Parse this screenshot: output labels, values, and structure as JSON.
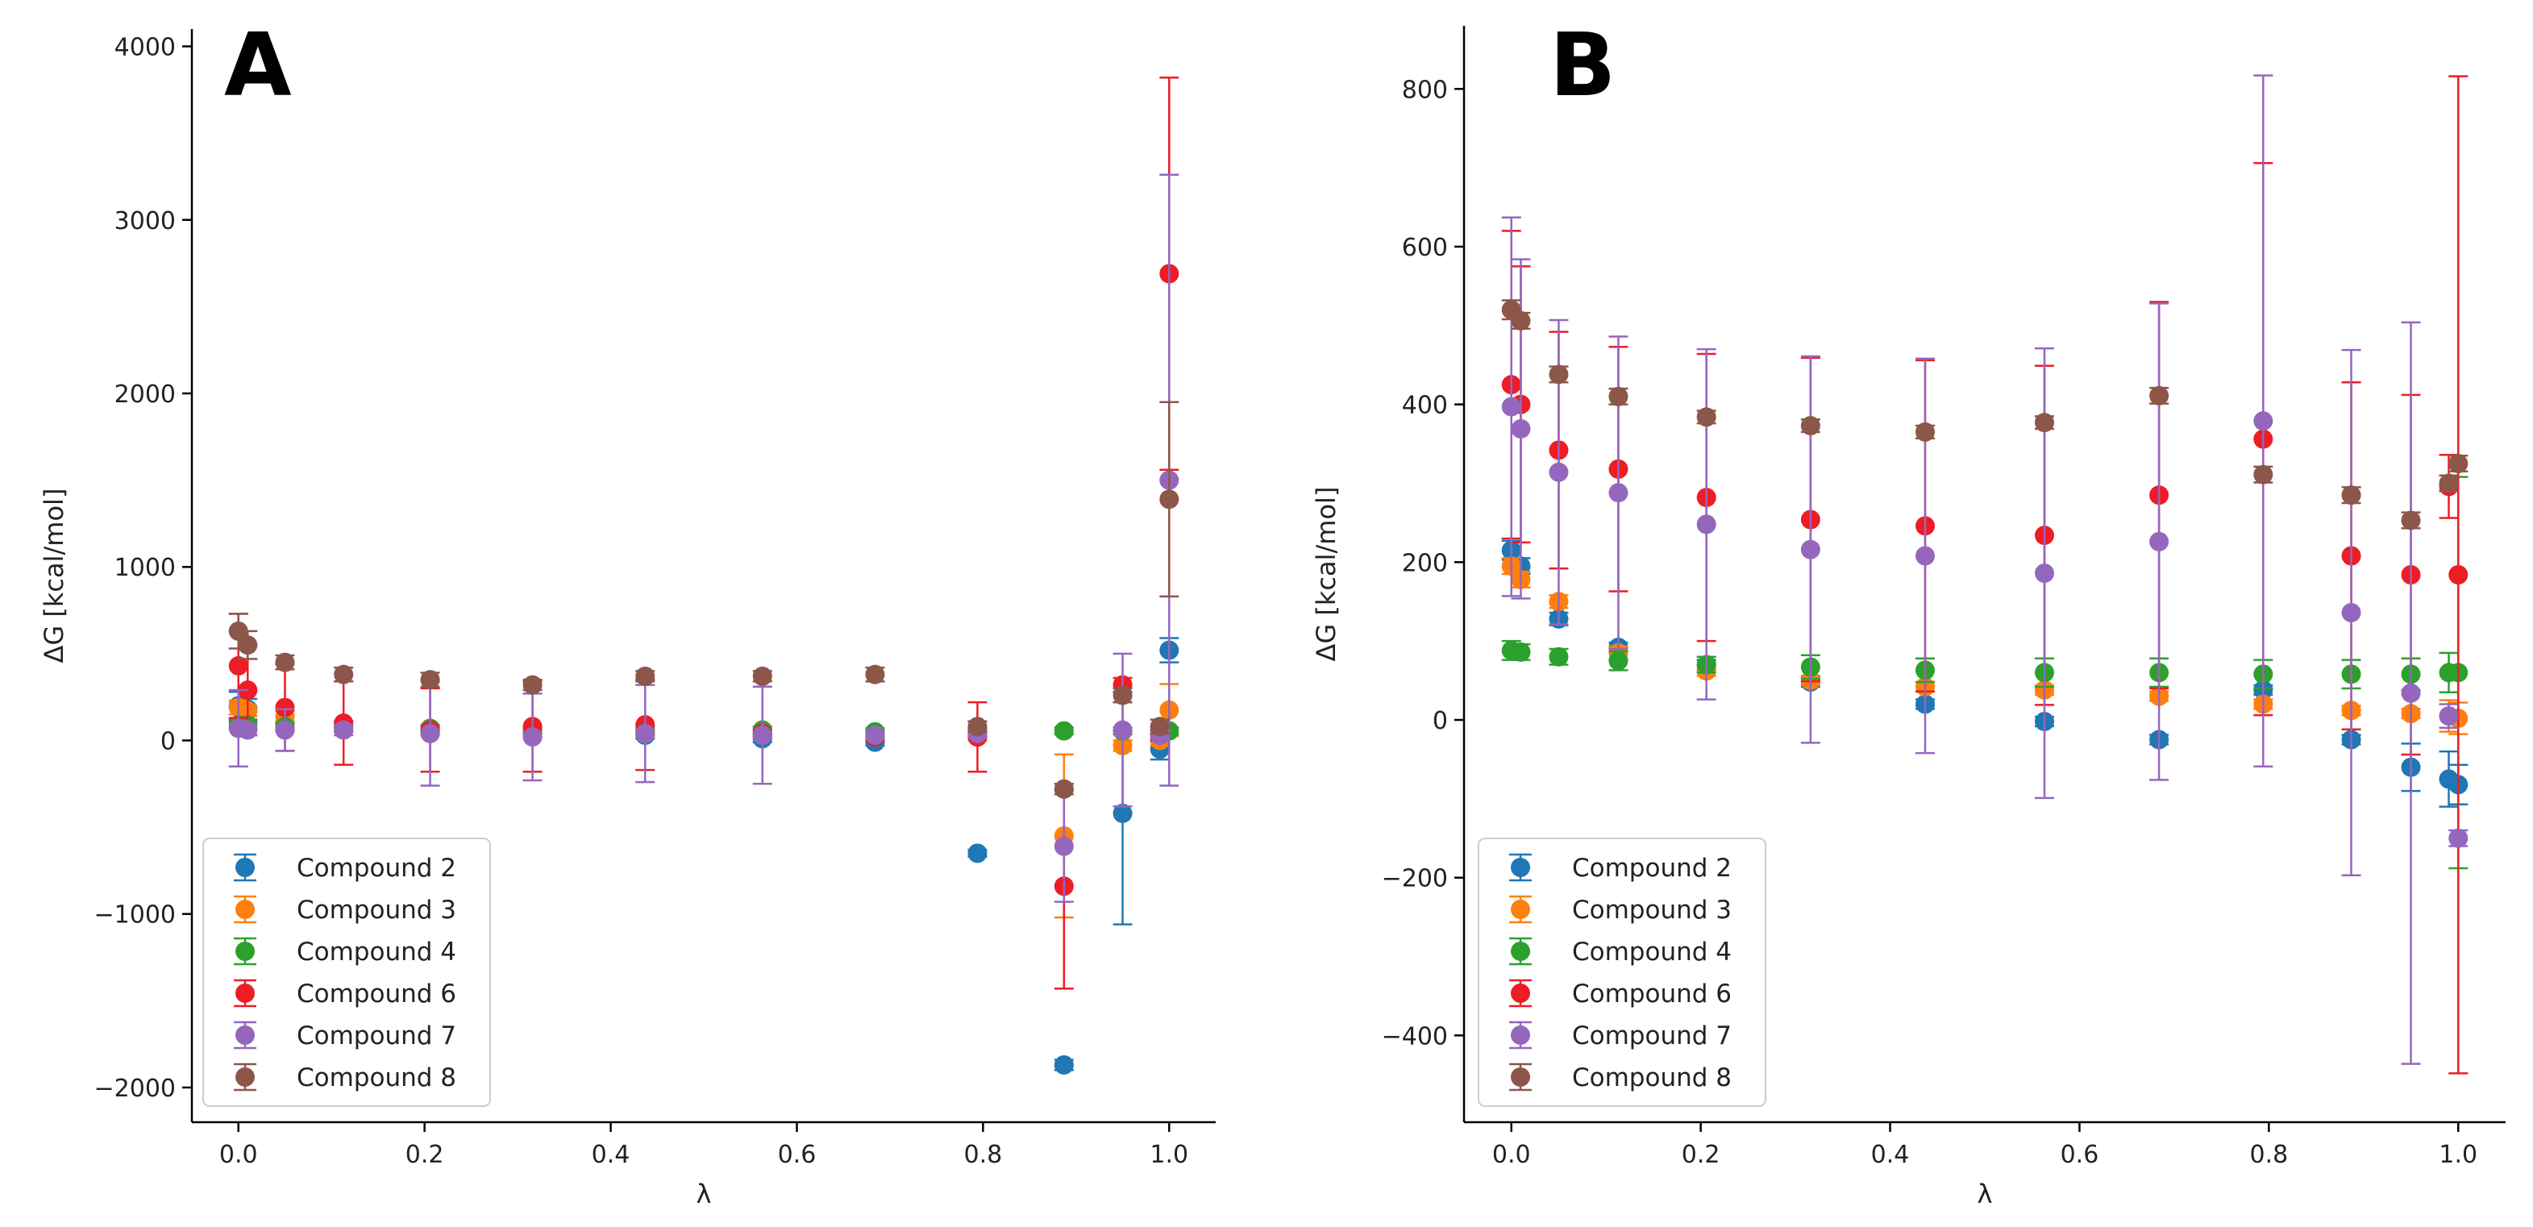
{
  "colors": {
    "Compound 2": "#1f77b4",
    "Compound 3": "#ff7f0e",
    "Compound 4": "#2ca02c",
    "Compound 6": "#ee1c24",
    "Compound 7": "#9467bd",
    "Compound 8": "#8c564b"
  },
  "chart_data": [
    {
      "type": "scatter",
      "panel_label": "A",
      "xlabel": "λ",
      "ylabel": "ΔG [kcal/mol]",
      "xlim": [
        -0.05,
        1.05
      ],
      "ylim": [
        -2200,
        4100
      ],
      "xticks": [
        0.0,
        0.2,
        0.4,
        0.6,
        0.8,
        1.0
      ],
      "xtick_labels": [
        "0.0",
        "0.2",
        "0.4",
        "0.6",
        "0.8",
        "1.0"
      ],
      "yticks": [
        -2000,
        -1000,
        0,
        1000,
        2000,
        3000,
        4000
      ],
      "ytick_labels": [
        "−2000",
        "−1000",
        "0",
        "1000",
        "2000",
        "3000",
        "4000"
      ],
      "legend_position": "lower-left",
      "series": [
        {
          "name": "Compound 2",
          "points": [
            {
              "x": 0.0,
              "y": 200,
              "err": 80
            },
            {
              "x": 0.01,
              "y": 180,
              "err": 60
            },
            {
              "x": 0.05,
              "y": 100,
              "err": 40
            },
            {
              "x": 0.113,
              "y": 80,
              "err": 30
            },
            {
              "x": 0.206,
              "y": 60,
              "err": 20
            },
            {
              "x": 0.316,
              "y": 40,
              "err": 20
            },
            {
              "x": 0.437,
              "y": 30,
              "err": 20
            },
            {
              "x": 0.563,
              "y": 10,
              "err": 20
            },
            {
              "x": 0.684,
              "y": -10,
              "err": 20
            },
            {
              "x": 0.794,
              "y": -650,
              "err": 20
            },
            {
              "x": 0.887,
              "y": -1870,
              "err": 30
            },
            {
              "x": 0.95,
              "y": -420,
              "err": 640
            },
            {
              "x": 0.99,
              "y": -50,
              "err": 60
            },
            {
              "x": 1.0,
              "y": 520,
              "err": 70
            }
          ]
        },
        {
          "name": "Compound 3",
          "points": [
            {
              "x": 0.0,
              "y": 190,
              "err": 40
            },
            {
              "x": 0.01,
              "y": 170,
              "err": 30
            },
            {
              "x": 0.05,
              "y": 140,
              "err": 30
            },
            {
              "x": 0.113,
              "y": 70,
              "err": 20
            },
            {
              "x": 0.206,
              "y": 50,
              "err": 20
            },
            {
              "x": 0.316,
              "y": 40,
              "err": 20
            },
            {
              "x": 0.437,
              "y": 40,
              "err": 20
            },
            {
              "x": 0.563,
              "y": 40,
              "err": 20
            },
            {
              "x": 0.684,
              "y": 40,
              "err": 20
            },
            {
              "x": 0.794,
              "y": 20,
              "err": 20
            },
            {
              "x": 0.887,
              "y": -550,
              "err": 470
            },
            {
              "x": 0.95,
              "y": -30,
              "err": 30
            },
            {
              "x": 0.99,
              "y": 0,
              "err": 30
            },
            {
              "x": 1.0,
              "y": 175,
              "err": 150
            }
          ]
        },
        {
          "name": "Compound 4",
          "points": [
            {
              "x": 0.0,
              "y": 90,
              "err": 20
            },
            {
              "x": 0.01,
              "y": 90,
              "err": 20
            },
            {
              "x": 0.05,
              "y": 80,
              "err": 20
            },
            {
              "x": 0.113,
              "y": 70,
              "err": 20
            },
            {
              "x": 0.206,
              "y": 70,
              "err": 20
            },
            {
              "x": 0.316,
              "y": 60,
              "err": 20
            },
            {
              "x": 0.437,
              "y": 60,
              "err": 20
            },
            {
              "x": 0.563,
              "y": 60,
              "err": 20
            },
            {
              "x": 0.684,
              "y": 50,
              "err": 20
            },
            {
              "x": 0.794,
              "y": 50,
              "err": 20
            },
            {
              "x": 0.887,
              "y": 55,
              "err": 20
            },
            {
              "x": 0.95,
              "y": 55,
              "err": 20
            },
            {
              "x": 0.99,
              "y": 55,
              "err": 20
            },
            {
              "x": 1.0,
              "y": 55,
              "err": 20
            }
          ]
        },
        {
          "name": "Compound 6",
          "points": [
            {
              "x": 0.0,
              "y": 430,
              "err": 300
            },
            {
              "x": 0.01,
              "y": 290,
              "err": 260
            },
            {
              "x": 0.05,
              "y": 190,
              "err": 250
            },
            {
              "x": 0.113,
              "y": 100,
              "err": 240
            },
            {
              "x": 0.206,
              "y": 60,
              "err": 240
            },
            {
              "x": 0.316,
              "y": 80,
              "err": 260
            },
            {
              "x": 0.437,
              "y": 90,
              "err": 260
            },
            {
              "x": 0.563,
              "y": 40,
              "err": 20
            },
            {
              "x": 0.684,
              "y": 20,
              "err": 20
            },
            {
              "x": 0.794,
              "y": 20,
              "err": 200
            },
            {
              "x": 0.887,
              "y": -840,
              "err": 590
            },
            {
              "x": 0.95,
              "y": 320,
              "err": 40
            },
            {
              "x": 0.99,
              "y": 30,
              "err": 30
            },
            {
              "x": 1.0,
              "y": 2690,
              "err": 1130
            }
          ]
        },
        {
          "name": "Compound 7",
          "points": [
            {
              "x": 0.0,
              "y": 70,
              "err": 220
            },
            {
              "x": 0.01,
              "y": 60,
              "err": 30
            },
            {
              "x": 0.05,
              "y": 60,
              "err": 120
            },
            {
              "x": 0.113,
              "y": 60,
              "err": 30
            },
            {
              "x": 0.206,
              "y": 40,
              "err": 300
            },
            {
              "x": 0.316,
              "y": 20,
              "err": 250
            },
            {
              "x": 0.437,
              "y": 40,
              "err": 280
            },
            {
              "x": 0.563,
              "y": 30,
              "err": 280
            },
            {
              "x": 0.684,
              "y": 30,
              "err": 20
            },
            {
              "x": 0.794,
              "y": 40,
              "err": 20
            },
            {
              "x": 0.887,
              "y": -610,
              "err": 320
            },
            {
              "x": 0.95,
              "y": 60,
              "err": 440
            },
            {
              "x": 0.99,
              "y": 30,
              "err": 20
            },
            {
              "x": 1.0,
              "y": 1500,
              "err": 1760
            }
          ]
        },
        {
          "name": "Compound 8",
          "points": [
            {
              "x": 0.0,
              "y": 630,
              "err": 100
            },
            {
              "x": 0.01,
              "y": 550,
              "err": 80
            },
            {
              "x": 0.05,
              "y": 450,
              "err": 40
            },
            {
              "x": 0.113,
              "y": 380,
              "err": 40
            },
            {
              "x": 0.206,
              "y": 350,
              "err": 40
            },
            {
              "x": 0.316,
              "y": 320,
              "err": 30
            },
            {
              "x": 0.437,
              "y": 370,
              "err": 30
            },
            {
              "x": 0.563,
              "y": 370,
              "err": 30
            },
            {
              "x": 0.684,
              "y": 380,
              "err": 40
            },
            {
              "x": 0.794,
              "y": 80,
              "err": 30
            },
            {
              "x": 0.887,
              "y": -280,
              "err": 30
            },
            {
              "x": 0.95,
              "y": 260,
              "err": 40
            },
            {
              "x": 0.99,
              "y": 80,
              "err": 40
            },
            {
              "x": 1.0,
              "y": 1390,
              "err": 560
            }
          ]
        }
      ]
    },
    {
      "type": "scatter",
      "panel_label": "B",
      "xlabel": "λ",
      "ylabel": "ΔG [kcal/mol]",
      "xlim": [
        -0.05,
        1.05
      ],
      "ylim": [
        -510,
        880
      ],
      "xticks": [
        0.0,
        0.2,
        0.4,
        0.6,
        0.8,
        1.0
      ],
      "xtick_labels": [
        "0.0",
        "0.2",
        "0.4",
        "0.6",
        "0.8",
        "1.0"
      ],
      "yticks": [
        -400,
        -200,
        0,
        200,
        400,
        600,
        800
      ],
      "ytick_labels": [
        "−400",
        "−200",
        "0",
        "200",
        "400",
        "600",
        "800"
      ],
      "legend_position": "lower-left",
      "series": [
        {
          "name": "Compound 2",
          "points": [
            {
              "x": 0.0,
              "y": 215,
              "err": 12
            },
            {
              "x": 0.01,
              "y": 195,
              "err": 10
            },
            {
              "x": 0.05,
              "y": 128,
              "err": 8
            },
            {
              "x": 0.113,
              "y": 92,
              "err": 6
            },
            {
              "x": 0.206,
              "y": 70,
              "err": 6
            },
            {
              "x": 0.316,
              "y": 48,
              "err": 6
            },
            {
              "x": 0.437,
              "y": 20,
              "err": 6
            },
            {
              "x": 0.563,
              "y": -2,
              "err": 6
            },
            {
              "x": 0.684,
              "y": -25,
              "err": 6
            },
            {
              "x": 0.794,
              "y": 38,
              "err": 6
            },
            {
              "x": 0.887,
              "y": -25,
              "err": 6
            },
            {
              "x": 0.95,
              "y": -60,
              "err": 30
            },
            {
              "x": 0.99,
              "y": -75,
              "err": 35
            },
            {
              "x": 1.0,
              "y": -82,
              "err": 25
            }
          ]
        },
        {
          "name": "Compound 3",
          "points": [
            {
              "x": 0.0,
              "y": 195,
              "err": 10
            },
            {
              "x": 0.01,
              "y": 178,
              "err": 10
            },
            {
              "x": 0.05,
              "y": 150,
              "err": 8
            },
            {
              "x": 0.113,
              "y": 85,
              "err": 8
            },
            {
              "x": 0.206,
              "y": 62,
              "err": 6
            },
            {
              "x": 0.316,
              "y": 50,
              "err": 6
            },
            {
              "x": 0.437,
              "y": 42,
              "err": 6
            },
            {
              "x": 0.563,
              "y": 38,
              "err": 6
            },
            {
              "x": 0.684,
              "y": 30,
              "err": 6
            },
            {
              "x": 0.794,
              "y": 20,
              "err": 6
            },
            {
              "x": 0.887,
              "y": 12,
              "err": 6
            },
            {
              "x": 0.95,
              "y": 8,
              "err": 6
            },
            {
              "x": 0.99,
              "y": 5,
              "err": 20
            },
            {
              "x": 1.0,
              "y": 2,
              "err": 20
            }
          ]
        },
        {
          "name": "Compound 4",
          "points": [
            {
              "x": 0.0,
              "y": 88,
              "err": 12
            },
            {
              "x": 0.01,
              "y": 86,
              "err": 10
            },
            {
              "x": 0.05,
              "y": 80,
              "err": 10
            },
            {
              "x": 0.113,
              "y": 75,
              "err": 12
            },
            {
              "x": 0.206,
              "y": 70,
              "err": 10
            },
            {
              "x": 0.316,
              "y": 67,
              "err": 15
            },
            {
              "x": 0.437,
              "y": 63,
              "err": 15
            },
            {
              "x": 0.563,
              "y": 60,
              "err": 18
            },
            {
              "x": 0.684,
              "y": 60,
              "err": 18
            },
            {
              "x": 0.794,
              "y": 58,
              "err": 18
            },
            {
              "x": 0.887,
              "y": 58,
              "err": 18
            },
            {
              "x": 0.95,
              "y": 58,
              "err": 20
            },
            {
              "x": 0.99,
              "y": 60,
              "err": 25
            },
            {
              "x": 1.0,
              "y": 60,
              "err": 248
            }
          ]
        },
        {
          "name": "Compound 6",
          "points": [
            {
              "x": 0.0,
              "y": 425,
              "err": 195
            },
            {
              "x": 0.01,
              "y": 400,
              "err": 175
            },
            {
              "x": 0.05,
              "y": 342,
              "err": 150
            },
            {
              "x": 0.113,
              "y": 318,
              "err": 155
            },
            {
              "x": 0.206,
              "y": 282,
              "err": 182
            },
            {
              "x": 0.316,
              "y": 254,
              "err": 205
            },
            {
              "x": 0.437,
              "y": 246,
              "err": 210
            },
            {
              "x": 0.563,
              "y": 234,
              "err": 215
            },
            {
              "x": 0.684,
              "y": 285,
              "err": 245
            },
            {
              "x": 0.794,
              "y": 356,
              "err": 350
            },
            {
              "x": 0.887,
              "y": 208,
              "err": 220
            },
            {
              "x": 0.95,
              "y": 184,
              "err": 228
            },
            {
              "x": 0.99,
              "y": 296,
              "err": 40
            },
            {
              "x": 1.0,
              "y": 184,
              "err": 632
            }
          ]
        },
        {
          "name": "Compound 7",
          "points": [
            {
              "x": 0.0,
              "y": 397,
              "err": 240
            },
            {
              "x": 0.01,
              "y": 369,
              "err": 215
            },
            {
              "x": 0.05,
              "y": 314,
              "err": 193
            },
            {
              "x": 0.113,
              "y": 288,
              "err": 198
            },
            {
              "x": 0.206,
              "y": 248,
              "err": 222
            },
            {
              "x": 0.316,
              "y": 216,
              "err": 245
            },
            {
              "x": 0.437,
              "y": 208,
              "err": 250
            },
            {
              "x": 0.563,
              "y": 186,
              "err": 285
            },
            {
              "x": 0.684,
              "y": 226,
              "err": 302
            },
            {
              "x": 0.794,
              "y": 379,
              "err": 438
            },
            {
              "x": 0.887,
              "y": 136,
              "err": 333
            },
            {
              "x": 0.95,
              "y": 34,
              "err": 470
            },
            {
              "x": 0.99,
              "y": 5,
              "err": 15
            },
            {
              "x": 1.0,
              "y": -150,
              "err": 10
            }
          ]
        },
        {
          "name": "Compound 8",
          "points": [
            {
              "x": 0.0,
              "y": 520,
              "err": 12
            },
            {
              "x": 0.01,
              "y": 506,
              "err": 10
            },
            {
              "x": 0.05,
              "y": 438,
              "err": 10
            },
            {
              "x": 0.113,
              "y": 410,
              "err": 10
            },
            {
              "x": 0.206,
              "y": 384,
              "err": 8
            },
            {
              "x": 0.316,
              "y": 373,
              "err": 8
            },
            {
              "x": 0.437,
              "y": 365,
              "err": 8
            },
            {
              "x": 0.563,
              "y": 377,
              "err": 8
            },
            {
              "x": 0.684,
              "y": 411,
              "err": 10
            },
            {
              "x": 0.794,
              "y": 311,
              "err": 10
            },
            {
              "x": 0.887,
              "y": 285,
              "err": 10
            },
            {
              "x": 0.95,
              "y": 253,
              "err": 10
            },
            {
              "x": 0.99,
              "y": 300,
              "err": 10
            },
            {
              "x": 1.0,
              "y": 325,
              "err": 10
            }
          ]
        }
      ]
    }
  ]
}
